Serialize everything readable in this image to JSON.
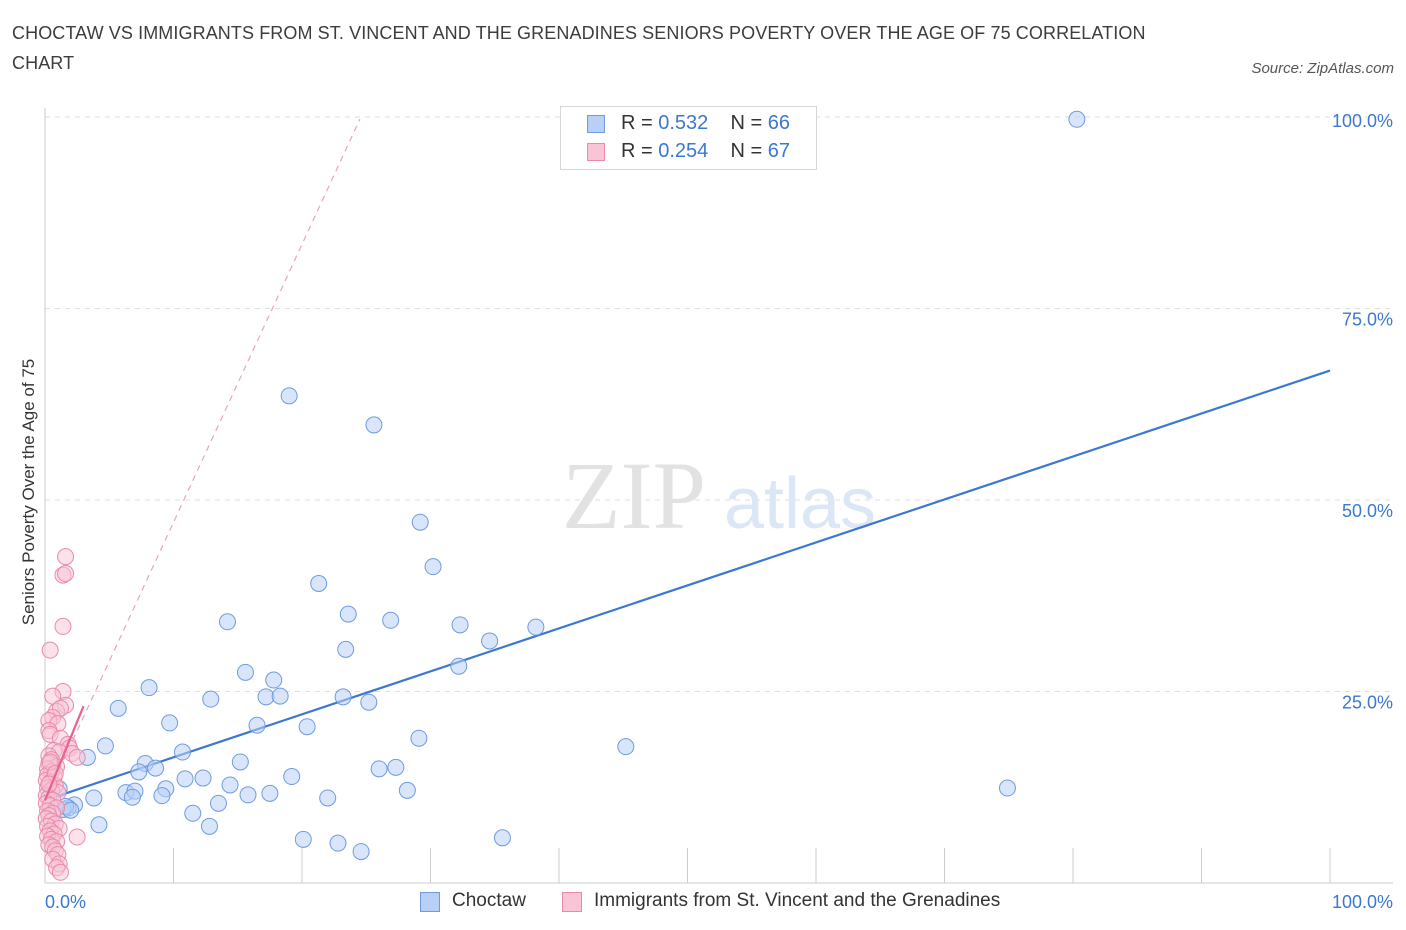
{
  "title": "CHOCTAW VS IMMIGRANTS FROM ST. VINCENT AND THE GRENADINES SENIORS POVERTY OVER THE AGE OF 75 CORRELATION CHART",
  "source": "Source: ZipAtlas.com",
  "watermark": {
    "zip": "ZIP",
    "atlas": "atlas"
  },
  "colors": {
    "blue": "#3b78d0",
    "blue_fill": "#b8d0f5",
    "pink": "#e8628e",
    "pink_fill": "#f8c4d6",
    "grid": "#dddddd",
    "axis_label": "#3b78d0"
  },
  "legend": {
    "r_label": "R =",
    "n_label": "N =",
    "rows": [
      {
        "r": "0.532",
        "n": "66"
      },
      {
        "r": "0.254",
        "n": "67"
      }
    ]
  },
  "bottom_legend": [
    "Choctaw",
    "Immigrants from St. Vincent and the Grenadines"
  ],
  "chart_data": {
    "type": "scatter",
    "title": "CHOCTAW VS IMMIGRANTS FROM ST. VINCENT AND THE GRENADINES SENIORS POVERTY OVER THE AGE OF 75 CORRELATION CHART",
    "xlabel": "",
    "ylabel": "Seniors Poverty Over the Age of 75",
    "xlim": [
      0,
      100
    ],
    "ylim": [
      0,
      100
    ],
    "x_tick_labels": [
      "0.0%",
      "100.0%"
    ],
    "y_tick_labels": [
      "25.0%",
      "50.0%",
      "75.0%",
      "100.0%"
    ],
    "y_ticks": [
      25,
      50,
      75,
      100
    ],
    "grid": true,
    "series": [
      {
        "name": "Choctaw",
        "color": "#3b78d0",
        "R": 0.532,
        "N": 66,
        "trend": {
          "x": [
            0,
            100
          ],
          "y": [
            10.8,
            66.9
          ],
          "style": "solid"
        },
        "points": [
          [
            80.3,
            99.7
          ],
          [
            19.0,
            63.6
          ],
          [
            25.6,
            59.8
          ],
          [
            29.2,
            47.1
          ],
          [
            30.2,
            41.3
          ],
          [
            21.3,
            39.1
          ],
          [
            23.6,
            35.1
          ],
          [
            26.9,
            34.3
          ],
          [
            14.2,
            34.1
          ],
          [
            32.3,
            33.7
          ],
          [
            38.2,
            33.4
          ],
          [
            34.6,
            31.6
          ],
          [
            23.4,
            30.5
          ],
          [
            32.2,
            28.3
          ],
          [
            15.6,
            27.5
          ],
          [
            17.8,
            26.5
          ],
          [
            8.1,
            25.5
          ],
          [
            17.2,
            24.3
          ],
          [
            18.3,
            24.4
          ],
          [
            12.9,
            24.0
          ],
          [
            23.2,
            24.3
          ],
          [
            25.2,
            23.6
          ],
          [
            5.7,
            22.8
          ],
          [
            9.7,
            20.9
          ],
          [
            16.5,
            20.6
          ],
          [
            20.4,
            20.4
          ],
          [
            29.1,
            18.9
          ],
          [
            45.2,
            17.8
          ],
          [
            4.7,
            17.9
          ],
          [
            10.7,
            17.1
          ],
          [
            3.3,
            16.4
          ],
          [
            7.8,
            15.6
          ],
          [
            15.2,
            15.8
          ],
          [
            8.6,
            15.0
          ],
          [
            26.0,
            14.9
          ],
          [
            27.3,
            15.1
          ],
          [
            7.3,
            14.5
          ],
          [
            10.9,
            13.6
          ],
          [
            12.3,
            13.7
          ],
          [
            19.2,
            13.9
          ],
          [
            14.4,
            12.8
          ],
          [
            9.4,
            12.3
          ],
          [
            6.3,
            11.8
          ],
          [
            1.1,
            12.3
          ],
          [
            7.0,
            12.0
          ],
          [
            28.2,
            12.1
          ],
          [
            15.8,
            11.5
          ],
          [
            17.5,
            11.7
          ],
          [
            9.1,
            11.4
          ],
          [
            3.8,
            11.1
          ],
          [
            6.8,
            11.2
          ],
          [
            22.0,
            11.1
          ],
          [
            13.5,
            10.4
          ],
          [
            2.3,
            10.2
          ],
          [
            1.8,
            9.8
          ],
          [
            1.4,
            9.6
          ],
          [
            11.5,
            9.1
          ],
          [
            4.2,
            7.6
          ],
          [
            12.8,
            7.4
          ],
          [
            74.9,
            12.4
          ],
          [
            20.1,
            5.7
          ],
          [
            22.8,
            5.2
          ],
          [
            35.6,
            5.9
          ],
          [
            24.6,
            4.1
          ],
          [
            1.6,
            10.0
          ],
          [
            2.0,
            9.5
          ]
        ]
      },
      {
        "name": "Immigrants from St. Vincent and the Grenadines",
        "color": "#e8628e",
        "R": 0.254,
        "N": 67,
        "trend": {
          "x": [
            0,
            3.0
          ],
          "y": [
            10.8,
            23.1
          ],
          "style": "solid"
        },
        "trend_extended": {
          "x": [
            0,
            24.5
          ],
          "y": [
            10.8,
            99.7
          ],
          "style": "dashed"
        },
        "points": [
          [
            1.6,
            42.6
          ],
          [
            1.4,
            40.2
          ],
          [
            1.6,
            40.4
          ],
          [
            1.4,
            33.5
          ],
          [
            0.4,
            30.4
          ],
          [
            1.4,
            25.0
          ],
          [
            0.6,
            24.4
          ],
          [
            1.6,
            23.2
          ],
          [
            0.9,
            22.4
          ],
          [
            1.2,
            22.8
          ],
          [
            0.6,
            21.6
          ],
          [
            0.3,
            21.2
          ],
          [
            1.0,
            20.8
          ],
          [
            0.3,
            19.9
          ],
          [
            0.4,
            19.4
          ],
          [
            1.2,
            18.9
          ],
          [
            1.8,
            18.1
          ],
          [
            1.9,
            17.6
          ],
          [
            0.7,
            17.3
          ],
          [
            1.1,
            17.1
          ],
          [
            2.1,
            16.9
          ],
          [
            0.3,
            16.6
          ],
          [
            2.5,
            16.4
          ],
          [
            0.5,
            16.1
          ],
          [
            0.3,
            15.6
          ],
          [
            0.9,
            15.2
          ],
          [
            0.2,
            14.9
          ],
          [
            0.5,
            14.5
          ],
          [
            0.2,
            14.1
          ],
          [
            0.7,
            13.8
          ],
          [
            0.1,
            13.4
          ],
          [
            0.4,
            13.1
          ],
          [
            0.8,
            12.7
          ],
          [
            0.2,
            12.4
          ],
          [
            0.5,
            12.1
          ],
          [
            1.0,
            11.8
          ],
          [
            0.1,
            11.4
          ],
          [
            0.3,
            11.1
          ],
          [
            0.6,
            10.8
          ],
          [
            0.1,
            10.4
          ],
          [
            0.4,
            10.1
          ],
          [
            0.9,
            9.8
          ],
          [
            0.2,
            9.4
          ],
          [
            0.6,
            9.1
          ],
          [
            0.3,
            8.8
          ],
          [
            0.1,
            8.4
          ],
          [
            0.5,
            8.1
          ],
          [
            0.8,
            7.7
          ],
          [
            0.2,
            7.4
          ],
          [
            1.1,
            7.1
          ],
          [
            0.4,
            6.8
          ],
          [
            0.7,
            6.4
          ],
          [
            0.2,
            6.1
          ],
          [
            2.5,
            6.0
          ],
          [
            0.5,
            5.7
          ],
          [
            0.9,
            5.4
          ],
          [
            0.3,
            5.0
          ],
          [
            0.6,
            4.7
          ],
          [
            0.8,
            4.2
          ],
          [
            1.0,
            3.7
          ],
          [
            0.6,
            3.1
          ],
          [
            1.1,
            2.5
          ],
          [
            0.9,
            2.0
          ],
          [
            1.2,
            1.4
          ],
          [
            0.4,
            15.8
          ],
          [
            0.8,
            14.3
          ],
          [
            0.3,
            12.9
          ]
        ]
      }
    ]
  }
}
